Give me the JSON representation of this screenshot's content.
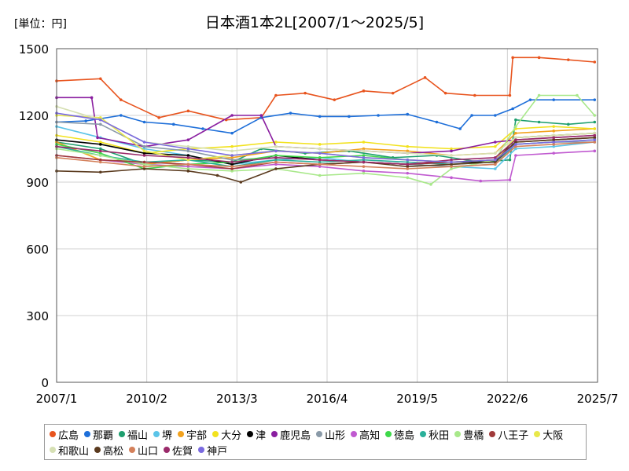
{
  "chart_data": {
    "type": "line",
    "title": "日本酒1本2L[2007/1～2025/5]",
    "unit_label": "[単位：円]",
    "xlim": [
      2007.0,
      2025.5
    ],
    "ylim": [
      0,
      1500
    ],
    "x_ticks": [
      {
        "label": "2007/1",
        "value": 2007.0
      },
      {
        "label": "2010/2",
        "value": 2010.083
      },
      {
        "label": "2013/3",
        "value": 2013.167
      },
      {
        "label": "2016/4",
        "value": 2016.25
      },
      {
        "label": "2019/5",
        "value": 2019.333
      },
      {
        "label": "2022/6",
        "value": 2022.417
      },
      {
        "label": "2025/7",
        "value": 2025.5
      }
    ],
    "y_ticks": [
      0,
      300,
      600,
      900,
      1200,
      1500
    ],
    "grid": true,
    "legend_position": "bottom",
    "series": [
      {
        "name": "広島",
        "color": "#e8541e",
        "x": [
          2007.0,
          2008.5,
          2009.2,
          2010.5,
          2011.5,
          2012.8,
          2014.0,
          2014.5,
          2015.5,
          2016.5,
          2017.5,
          2018.5,
          2019.6,
          2020.3,
          2021.3,
          2022.5,
          2022.6,
          2023.5,
          2024.5,
          2025.4
        ],
        "y": [
          1355,
          1365,
          1270,
          1190,
          1220,
          1180,
          1190,
          1290,
          1300,
          1270,
          1310,
          1300,
          1370,
          1300,
          1290,
          1290,
          1460,
          1460,
          1450,
          1440
        ]
      },
      {
        "name": "那覇",
        "color": "#1e6fd9",
        "x": [
          2007.0,
          2008.0,
          2009.2,
          2010.0,
          2011.0,
          2012.0,
          2013.0,
          2014.0,
          2015.0,
          2016.0,
          2017.0,
          2018.0,
          2019.0,
          2020.0,
          2020.8,
          2021.2,
          2022.0,
          2022.6,
          2023.2,
          2024.0,
          2025.4
        ],
        "y": [
          1170,
          1175,
          1200,
          1170,
          1160,
          1140,
          1120,
          1190,
          1210,
          1195,
          1195,
          1200,
          1205,
          1170,
          1140,
          1200,
          1200,
          1230,
          1270,
          1270,
          1270
        ]
      },
      {
        "name": "福山",
        "color": "#1e9e6e",
        "x": [
          2007.0,
          2008.5,
          2010.0,
          2011.5,
          2013.0,
          2014.0,
          2015.5,
          2017.0,
          2018.5,
          2020.0,
          2021.5,
          2022.5,
          2022.7,
          2023.5,
          2024.5,
          2025.4
        ],
        "y": [
          1080,
          1050,
          980,
          1000,
          990,
          1050,
          1030,
          1040,
          1010,
          1020,
          990,
          1000,
          1180,
          1170,
          1160,
          1170
        ]
      },
      {
        "name": "堺",
        "color": "#5bc4e8",
        "x": [
          2007.0,
          2008.5,
          2010.0,
          2011.5,
          2013.0,
          2014.5,
          2016.0,
          2017.5,
          2019.0,
          2020.5,
          2022.0,
          2022.7,
          2024.0,
          2025.4
        ],
        "y": [
          1150,
          1100,
          1050,
          1020,
          980,
          1000,
          1010,
          990,
          980,
          970,
          960,
          1050,
          1060,
          1080
        ]
      },
      {
        "name": "宇部",
        "color": "#f2a21e",
        "x": [
          2007.0,
          2008.5,
          2010.0,
          2011.5,
          2013.0,
          2014.5,
          2016.0,
          2017.5,
          2019.0,
          2020.5,
          2022.0,
          2022.7,
          2024.0,
          2025.4
        ],
        "y": [
          1080,
          1000,
          980,
          1000,
          1010,
          1040,
          1030,
          1050,
          1040,
          1020,
          1030,
          1120,
          1130,
          1140
        ]
      },
      {
        "name": "大分",
        "color": "#f2e21e",
        "x": [
          2007.0,
          2008.5,
          2010.0,
          2011.5,
          2013.0,
          2014.5,
          2016.0,
          2017.5,
          2019.0,
          2020.5,
          2022.0,
          2022.7,
          2024.0,
          2025.4
        ],
        "y": [
          1110,
          1080,
          1030,
          1050,
          1060,
          1080,
          1070,
          1080,
          1060,
          1050,
          1060,
          1140,
          1150,
          1140
        ]
      },
      {
        "name": "津",
        "color": "#000000",
        "x": [
          2007.0,
          2008.5,
          2010.0,
          2011.5,
          2013.0,
          2014.5,
          2016.0,
          2017.5,
          2019.0,
          2020.5,
          2022.0,
          2022.7,
          2024.0,
          2025.4
        ],
        "y": [
          1090,
          1070,
          1030,
          1020,
          980,
          1020,
          1000,
          990,
          980,
          990,
          990,
          1100,
          1110,
          1120
        ]
      },
      {
        "name": "鹿児島",
        "color": "#8a1ea0",
        "x": [
          2007.0,
          2008.2,
          2008.4,
          2010.0,
          2011.5,
          2013.0,
          2014.0,
          2014.5,
          2016.0,
          2017.5,
          2019.0,
          2020.5,
          2022.0,
          2022.7,
          2024.0,
          2025.4
        ],
        "y": [
          1280,
          1280,
          1100,
          1060,
          1090,
          1200,
          1200,
          1060,
          1050,
          1040,
          1030,
          1040,
          1080,
          1090,
          1100,
          1110
        ]
      },
      {
        "name": "山形",
        "color": "#8a9aa8",
        "x": [
          2007.0,
          2008.5,
          2010.0,
          2011.5,
          2013.0,
          2014.5,
          2016.0,
          2017.5,
          2019.0,
          2020.5,
          2022.0,
          2022.7,
          2024.0,
          2025.4
        ],
        "y": [
          1170,
          1160,
          1060,
          1040,
          1000,
          1010,
          1000,
          990,
          980,
          970,
          980,
          1070,
          1080,
          1080
        ]
      },
      {
        "name": "高知",
        "color": "#c05ad0",
        "x": [
          2007.0,
          2008.5,
          2010.0,
          2011.5,
          2013.0,
          2014.5,
          2016.0,
          2017.5,
          2019.0,
          2020.5,
          2021.5,
          2022.5,
          2022.7,
          2024.0,
          2025.4
        ],
        "y": [
          1020,
          1000,
          980,
          970,
          960,
          980,
          970,
          950,
          940,
          920,
          905,
          910,
          1020,
          1030,
          1040
        ]
      },
      {
        "name": "徳島",
        "color": "#3ed84a",
        "x": [
          2007.0,
          2008.5,
          2010.0,
          2011.5,
          2013.0,
          2014.5,
          2016.0,
          2017.5,
          2019.0,
          2020.5,
          2022.0,
          2022.7,
          2024.0,
          2025.4
        ],
        "y": [
          1070,
          1030,
          960,
          980,
          990,
          1020,
          1010,
          1020,
          1000,
          990,
          1000,
          1080,
          1090,
          1100
        ]
      },
      {
        "name": "秋田",
        "color": "#2ab09a",
        "x": [
          2007.0,
          2008.5,
          2010.0,
          2011.5,
          2013.0,
          2014.5,
          2016.0,
          2017.5,
          2019.0,
          2020.5,
          2022.0,
          2022.7,
          2024.0,
          2025.4
        ],
        "y": [
          1060,
          1020,
          990,
          1000,
          970,
          1000,
          990,
          1000,
          990,
          980,
          990,
          1070,
          1080,
          1090
        ]
      },
      {
        "name": "豊橋",
        "color": "#a8e88a",
        "x": [
          2007.0,
          2008.5,
          2010.0,
          2011.5,
          2013.0,
          2014.5,
          2016.0,
          2017.5,
          2019.0,
          2019.8,
          2020.5,
          2022.0,
          2022.7,
          2023.5,
          2024.8,
          2025.4
        ],
        "y": [
          1050,
          1020,
          980,
          960,
          950,
          960,
          930,
          940,
          920,
          890,
          960,
          1000,
          1150,
          1290,
          1290,
          1200
        ]
      },
      {
        "name": "八王子",
        "color": "#a03a3a",
        "x": [
          2007.0,
          2008.5,
          2010.0,
          2011.5,
          2013.0,
          2014.5,
          2016.0,
          2017.5,
          2019.0,
          2020.5,
          2022.0,
          2022.7,
          2024.0,
          2025.4
        ],
        "y": [
          1020,
          1000,
          990,
          980,
          960,
          990,
          980,
          990,
          980,
          990,
          1000,
          1080,
          1090,
          1100
        ]
      },
      {
        "name": "大阪",
        "color": "#e8e84a",
        "x": [
          2007.0,
          2008.5,
          2010.0,
          2011.5,
          2013.0,
          2014.5,
          2016.0,
          2017.5,
          2019.0,
          2020.5,
          2022.0,
          2022.7,
          2024.0,
          2025.4
        ],
        "y": [
          1200,
          1190,
          1040,
          1000,
          1020,
          1040,
          1030,
          1010,
          1000,
          990,
          1000,
          1100,
          1110,
          1120
        ]
      },
      {
        "name": "和歌山",
        "color": "#d6e0b4",
        "x": [
          2007.0,
          2008.5,
          2010.0,
          2011.5,
          2013.0,
          2014.5,
          2016.0,
          2017.5,
          2019.0,
          2020.5,
          2022.0,
          2022.7,
          2024.0,
          2025.4
        ],
        "y": [
          1240,
          1180,
          1080,
          1060,
          1040,
          1060,
          1050,
          1040,
          1030,
          1020,
          1030,
          1100,
          1110,
          1120
        ]
      },
      {
        "name": "高松",
        "color": "#5a3a1e",
        "x": [
          2007.0,
          2008.5,
          2010.0,
          2011.5,
          2012.5,
          2013.3,
          2014.5,
          2016.0,
          2017.5,
          2019.0,
          2020.5,
          2022.0,
          2022.7,
          2024.0,
          2025.4
        ],
        "y": [
          950,
          945,
          960,
          950,
          930,
          900,
          960,
          980,
          990,
          970,
          980,
          990,
          1080,
          1090,
          1100
        ]
      },
      {
        "name": "山口",
        "color": "#d4805a",
        "x": [
          2007.0,
          2008.5,
          2010.0,
          2011.5,
          2013.0,
          2014.5,
          2016.0,
          2017.5,
          2019.0,
          2020.5,
          2022.0,
          2022.7,
          2024.0,
          2025.4
        ],
        "y": [
          1010,
          990,
          970,
          980,
          970,
          990,
          980,
          970,
          960,
          970,
          980,
          1060,
          1070,
          1080
        ]
      },
      {
        "name": "佐賀",
        "color": "#9a2a6a",
        "x": [
          2007.0,
          2008.5,
          2010.0,
          2011.5,
          2013.0,
          2014.5,
          2016.0,
          2017.5,
          2019.0,
          2020.5,
          2022.0,
          2022.7,
          2024.0,
          2025.4
        ],
        "y": [
          1060,
          1040,
          1020,
          1010,
          990,
          1010,
          1000,
          990,
          980,
          1000,
          1010,
          1090,
          1100,
          1110
        ]
      },
      {
        "name": "神戸",
        "color": "#7a6ae0",
        "x": [
          2007.0,
          2008.5,
          2010.0,
          2011.5,
          2013.0,
          2014.5,
          2016.0,
          2017.5,
          2019.0,
          2020.5,
          2022.0,
          2022.7,
          2024.0,
          2025.4
        ],
        "y": [
          1210,
          1180,
          1080,
          1050,
          1020,
          1040,
          1030,
          1010,
          1000,
          990,
          1000,
          1070,
          1080,
          1090
        ]
      }
    ]
  }
}
